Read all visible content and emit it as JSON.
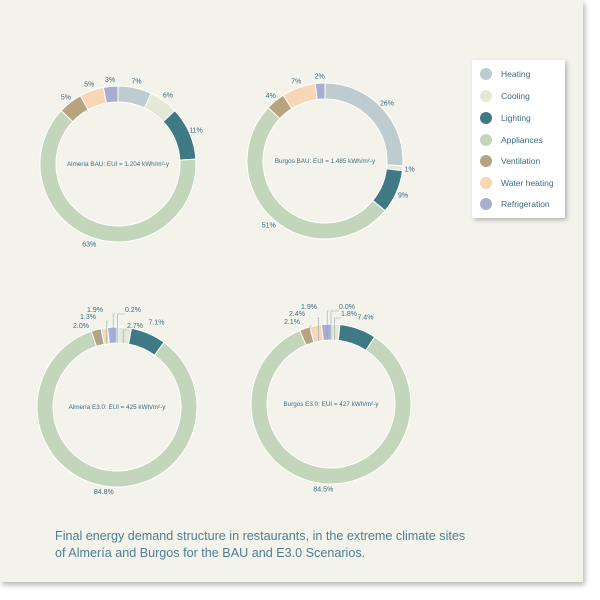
{
  "legend": [
    {
      "name": "Heating",
      "color": "#bfcccf"
    },
    {
      "name": "Cooling",
      "color": "#e4e9d6"
    },
    {
      "name": "Lighting",
      "color": "#3f7a84"
    },
    {
      "name": "Appliances",
      "color": "#c3d6bb"
    },
    {
      "name": "Ventilation",
      "color": "#b7a47f"
    },
    {
      "name": "Water heating",
      "color": "#f8d6b6"
    },
    {
      "name": "Refrigeration",
      "color": "#a7aed2"
    }
  ],
  "caption": {
    "line1": "Final energy demand structure in restaurants, in the extreme climate sites",
    "line2": "of Almería and Burgos for the BAU and E3.0 Scenarios."
  },
  "chart_data": [
    {
      "type": "pie",
      "title": "Almería BAU: EUI = 1.204 kWh/m²-y",
      "categories": [
        "Heating",
        "Cooling",
        "Lighting",
        "Appliances",
        "Ventilation",
        "Water heating",
        "Refrigeration"
      ],
      "values": [
        7,
        6,
        11,
        63,
        5,
        5,
        3
      ],
      "labels": [
        "7%",
        "6%",
        "11%",
        "63%",
        "5%",
        "5%",
        "3%"
      ]
    },
    {
      "type": "pie",
      "title": "Burgos BAU: EUI = 1.485 kWh/m²-y",
      "categories": [
        "Heating",
        "Cooling",
        "Lighting",
        "Appliances",
        "Ventilation",
        "Water heating",
        "Refrigeration"
      ],
      "values": [
        26,
        1,
        9,
        51,
        4,
        7,
        2
      ],
      "labels": [
        "26%",
        "1%",
        "9%",
        "51%",
        "4%",
        "7%",
        "2%"
      ]
    },
    {
      "type": "pie",
      "title": "Almería E3.0: EUI = 425 kWh/m²-y",
      "categories": [
        "Heating",
        "Cooling",
        "Lighting",
        "Appliances",
        "Ventilation",
        "Water heating",
        "Refrigeration"
      ],
      "values": [
        0.2,
        2.7,
        7.1,
        84.8,
        2.0,
        1.3,
        1.9
      ],
      "labels": [
        "0.2%",
        "2.7%",
        "7.1%",
        "84.8%",
        "2.0%",
        "1.3%",
        "1.9%"
      ]
    },
    {
      "type": "pie",
      "title": "Burgos E3.0: EUI = 427 kWh/m²-y",
      "categories": [
        "Heating",
        "Cooling",
        "Lighting",
        "Appliances",
        "Ventilation",
        "Water heating",
        "Refrigeration"
      ],
      "values": [
        0.0,
        1.8,
        7.4,
        84.5,
        2.1,
        2.4,
        1.9
      ],
      "labels": [
        "0.0%",
        "1.8%",
        "7.4%",
        "84.5%",
        "2.1%",
        "2.4%",
        "1.9%"
      ]
    }
  ]
}
